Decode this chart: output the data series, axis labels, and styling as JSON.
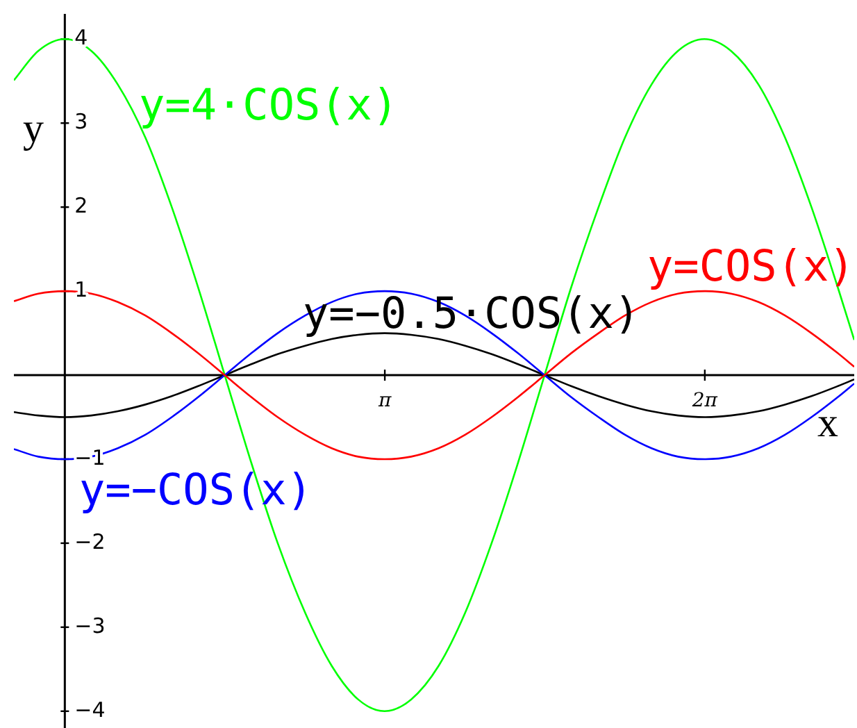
{
  "chart_data": {
    "type": "line",
    "xlabel": "x",
    "ylabel": "y",
    "xlim": [
      -0.5,
      7.75
    ],
    "ylim": [
      -4.2,
      4.3
    ],
    "xticks": [
      {
        "value": 3.1416,
        "label": "π"
      },
      {
        "value": 6.2832,
        "label": "2π"
      }
    ],
    "yticks": [
      -4,
      -3,
      -2,
      -1,
      1,
      2,
      3,
      4
    ],
    "marker": "none",
    "x": [
      -0.5,
      -0.26,
      0,
      0.26,
      0.52,
      0.79,
      1.05,
      1.31,
      1.57,
      1.83,
      2.09,
      2.36,
      2.62,
      2.88,
      3.14,
      3.4,
      3.67,
      3.93,
      4.19,
      4.45,
      4.71,
      4.97,
      5.24,
      5.5,
      5.76,
      6.02,
      6.28,
      6.54,
      6.81,
      7.07,
      7.33,
      7.59,
      7.75
    ],
    "series": [
      {
        "name": "y=COS(x)",
        "color": "#ff0000",
        "values": [
          0.88,
          0.97,
          1,
          0.97,
          0.87,
          0.71,
          0.5,
          0.26,
          0,
          -0.26,
          -0.5,
          -0.71,
          -0.87,
          -0.97,
          -1,
          -0.97,
          -0.87,
          -0.71,
          -0.5,
          -0.26,
          0,
          0.26,
          0.5,
          0.71,
          0.87,
          0.97,
          1,
          0.97,
          0.87,
          0.71,
          0.5,
          0.26,
          0.1
        ]
      },
      {
        "name": "y=−COS(x)",
        "color": "#0000ff",
        "values": [
          -0.88,
          -0.97,
          -1,
          -0.97,
          -0.87,
          -0.71,
          -0.5,
          -0.26,
          0,
          0.26,
          0.5,
          0.71,
          0.87,
          0.97,
          1,
          0.97,
          0.87,
          0.71,
          0.5,
          0.26,
          0,
          -0.26,
          -0.5,
          -0.71,
          -0.87,
          -0.97,
          -1,
          -0.97,
          -0.87,
          -0.71,
          -0.5,
          -0.26,
          -0.1
        ]
      },
      {
        "name": "y=−0.5·COS(x)",
        "color": "#000000",
        "values": [
          -0.44,
          -0.48,
          -0.5,
          -0.48,
          -0.43,
          -0.35,
          -0.25,
          -0.13,
          0,
          0.13,
          0.25,
          0.35,
          0.43,
          0.48,
          0.5,
          0.48,
          0.43,
          0.35,
          0.25,
          0.13,
          0,
          -0.13,
          -0.25,
          -0.35,
          -0.43,
          -0.48,
          -0.5,
          -0.48,
          -0.43,
          -0.35,
          -0.25,
          -0.13,
          -0.05
        ]
      },
      {
        "name": "y=4·COS(x)",
        "color": "#00ff00",
        "values": [
          3.51,
          3.86,
          4,
          3.86,
          3.46,
          2.83,
          2,
          1.04,
          0,
          -1.04,
          -2,
          -2.83,
          -3.46,
          -3.86,
          -4,
          -3.86,
          -3.46,
          -2.83,
          -2,
          -1.04,
          0,
          1.04,
          2,
          2.83,
          3.46,
          3.86,
          4,
          3.86,
          3.46,
          2.83,
          2,
          1.04,
          0.42
        ]
      }
    ]
  }
}
